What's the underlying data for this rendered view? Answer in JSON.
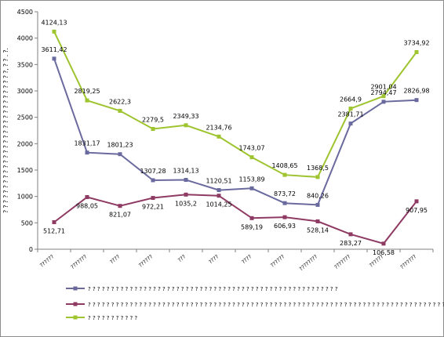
{
  "chart_data": {
    "type": "line",
    "title": "",
    "xlabel": "",
    "ylabel": "? ? ? ? ? ? ? ? ? ? ? ? ? ? ? ? ? ? ? ? ? ? ? ? ? ? ? ? ?, ? ? . ?.",
    "ylim": [
      0,
      4500
    ],
    "ytick_step": 500,
    "grid": false,
    "legend_position": "bottom",
    "categories": [
      "??????",
      "???????",
      "????",
      "??????",
      "???",
      "????",
      "????",
      "??????",
      "????????",
      "???????",
      "??????",
      "???????"
    ],
    "series": [
      {
        "name": "? ? ? ? ? ? ? ? ? ? ? ? ? ?  ? ? ? ? ? ? ?   ? ? ? ? ? ? ? ? ? ?  ? ? ? ? ? ? ? ? ? ? ? ? ? ?  ? ? ? ? ? ? ? ? ?",
        "color": "#6a6a9e",
        "values": [
          3611.42,
          1831.17,
          1801.23,
          1307.28,
          1314.13,
          1120.51,
          1153.89,
          873.72,
          840.26,
          2381.71,
          2794.47,
          2826.98
        ],
        "labels": [
          "3611,42",
          "1831,17",
          "1801,23",
          "1307,28",
          "1314,13",
          "1120,51",
          "1153,89",
          "873,72",
          "840,26",
          "2381,71",
          "2794,47",
          "2826,98"
        ]
      },
      {
        "name": "? ? ? ? ? ?   ? ? ? ? ? ? ? ? ? ? ? ? ? ? ? ? ? ? ? ? ? ? ? ? ? ? ? ? ? ? ? ? ? ? ? ? ? ? ? ? ? ? ? ? ? ? ? ? ? ? ? ? ?  ? ? ? ? ? ?  ? ?  ? ? ? ? ? ? ? ? ? ? ? ?  ? ? ? ? ? ? ? ?  ? ? ? ? ? ? ? ?",
        "color": "#8e3a63",
        "values": [
          512.71,
          988.05,
          821.07,
          972.21,
          1035.2,
          1014.25,
          589.19,
          606.93,
          528.14,
          283.27,
          106.58,
          907.95
        ],
        "labels": [
          "512,71",
          "988,05",
          "821,07",
          "972,21",
          "1035,2",
          "1014,25",
          "589,19",
          "606,93",
          "528,14",
          "283,27",
          "106,58",
          "907,95"
        ]
      },
      {
        "name": "? ? ?  ? ?  ? ? ? ? ? ?",
        "color": "#9ec42f",
        "values": [
          4124.13,
          2819.25,
          2622.3,
          2279.5,
          2349.33,
          2134.76,
          1743.07,
          1408.65,
          1368.5,
          2664.9,
          2901.04,
          3734.92
        ],
        "labels": [
          "4124,13",
          "2819,25",
          "2622,3",
          "2279,5",
          "2349,33",
          "2134,76",
          "1743,07",
          "1408,65",
          "1368,5",
          "2664,9",
          "2901,04",
          "3734,92"
        ]
      }
    ]
  }
}
